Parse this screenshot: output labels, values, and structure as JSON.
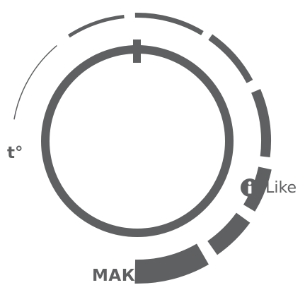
{
  "labels": {
    "temperature": "t°",
    "max": "МАКС.",
    "ilike": "iLike"
  },
  "icons": {
    "info": "info-icon"
  },
  "colors": {
    "primary": "#5f6062",
    "background": "#ffffff"
  },
  "scale": {
    "segment_count": 8
  }
}
